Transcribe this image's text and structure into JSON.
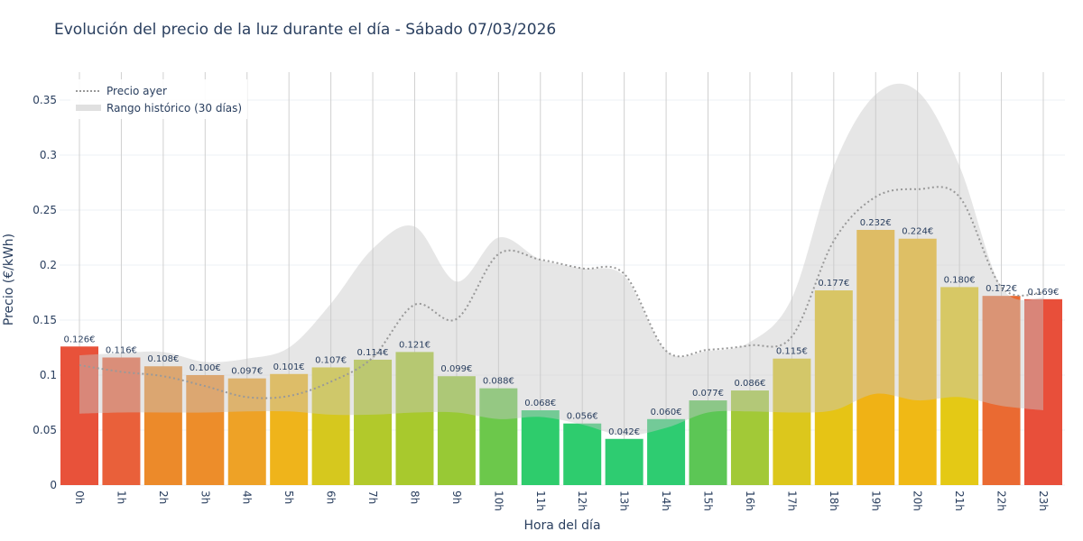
{
  "chart_data": {
    "type": "bar",
    "title": "Evolución del precio de la luz durante el día - Sábado 07/03/2026",
    "xlabel": "Hora del día",
    "ylabel": "Precio (€/kWh)",
    "ylim": [
      0,
      0.375
    ],
    "yticks": [
      0,
      0.05,
      0.1,
      0.15,
      0.2,
      0.25,
      0.3,
      0.35
    ],
    "ytick_labels": [
      "0",
      "0.05",
      "0.1",
      "0.15",
      "0.2",
      "0.25",
      "0.3",
      "0.35"
    ],
    "categories": [
      "0h",
      "1h",
      "2h",
      "3h",
      "4h",
      "5h",
      "6h",
      "7h",
      "8h",
      "9h",
      "10h",
      "11h",
      "12h",
      "13h",
      "14h",
      "15h",
      "16h",
      "17h",
      "18h",
      "19h",
      "20h",
      "21h",
      "22h",
      "23h"
    ],
    "values": [
      0.126,
      0.116,
      0.108,
      0.1,
      0.097,
      0.101,
      0.107,
      0.114,
      0.121,
      0.099,
      0.088,
      0.068,
      0.056,
      0.042,
      0.06,
      0.077,
      0.086,
      0.115,
      0.177,
      0.232,
      0.224,
      0.18,
      0.172,
      0.169
    ],
    "data_labels": [
      "0.126€",
      "0.116€",
      "0.108€",
      "0.100€",
      "0.097€",
      "0.101€",
      "0.107€",
      "0.114€",
      "0.121€",
      "0.099€",
      "0.088€",
      "0.068€",
      "0.056€",
      "0.042€",
      "0.060€",
      "0.077€",
      "0.086€",
      "0.115€",
      "0.177€",
      "0.232€",
      "0.224€",
      "0.180€",
      "0.172€",
      "0.169€"
    ],
    "bar_colors": [
      "#e8523a",
      "#e9603a",
      "#ec8a2a",
      "#ed8d2a",
      "#eea226",
      "#efb41b",
      "#d6c81e",
      "#b2c92b",
      "#a8c92d",
      "#98c935",
      "#6cc84b",
      "#2ecc6c",
      "#2ecc6e",
      "#2ecc71",
      "#2ecc71",
      "#5cc655",
      "#a2c937",
      "#dcc71c",
      "#e6c415",
      "#f0b215",
      "#f0b915",
      "#e4c915",
      "#ea6a32",
      "#e84f3a"
    ],
    "series": [
      {
        "name": "Precio ayer",
        "style": "dotted",
        "color": "#999999",
        "values": [
          0.109,
          0.103,
          0.099,
          0.09,
          0.08,
          0.081,
          0.094,
          0.116,
          0.164,
          0.151,
          0.21,
          0.205,
          0.197,
          0.192,
          0.122,
          0.123,
          0.127,
          0.135,
          0.222,
          0.262,
          0.269,
          0.262,
          0.18,
          0.175
        ]
      },
      {
        "name": "Rango histórico (30 días)",
        "style": "band",
        "color": "#d3d3d3",
        "upper": [
          0.118,
          0.12,
          0.121,
          0.112,
          0.115,
          0.125,
          0.165,
          0.215,
          0.235,
          0.185,
          0.225,
          0.205,
          0.197,
          0.19,
          0.122,
          0.122,
          0.13,
          0.17,
          0.29,
          0.355,
          0.358,
          0.29,
          0.18,
          0.17
        ],
        "lower": [
          0.065,
          0.066,
          0.066,
          0.066,
          0.067,
          0.067,
          0.064,
          0.064,
          0.066,
          0.066,
          0.06,
          0.062,
          0.055,
          0.045,
          0.052,
          0.066,
          0.067,
          0.066,
          0.068,
          0.083,
          0.077,
          0.08,
          0.072,
          0.068
        ]
      }
    ],
    "legend_position": "top-left",
    "grid": true
  }
}
